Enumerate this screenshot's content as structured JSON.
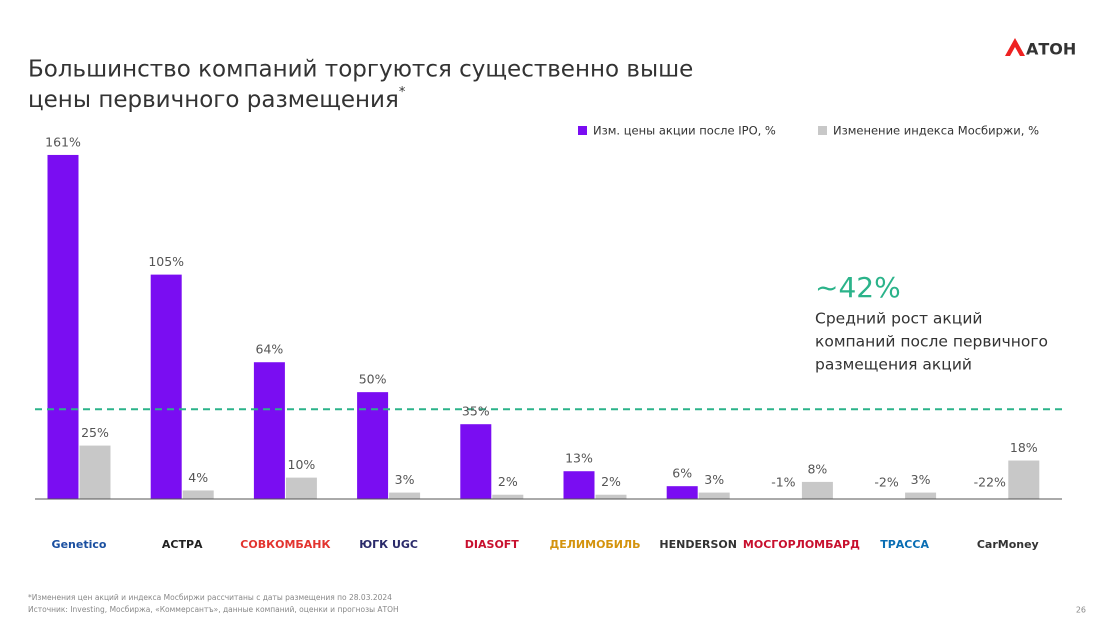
{
  "header": {
    "title_lines": [
      "Большинство компаний торгуются существенно выше",
      "цены первичного размещения"
    ],
    "title_note_mark": "*",
    "brand": "АТОН"
  },
  "chart_data": {
    "type": "bar",
    "categories": [
      "Genetico",
      "АСТРА",
      "СОВКОМБАНК",
      "ЮГК UGC",
      "DIASOFT",
      "ДЕЛИМОБИЛЬ",
      "HENDERSON",
      "МОСГОРЛОМБАРД",
      "ТРАССА",
      "CarMoney"
    ],
    "series": [
      {
        "name": "Изм. цены акции после IPO, %",
        "color": "#7a0df2",
        "values": [
          161,
          105,
          64,
          50,
          35,
          13,
          6,
          -1,
          -2,
          -22
        ],
        "value_labels": [
          "161%",
          "105%",
          "64%",
          "50%",
          "35%",
          "13%",
          "6%",
          "-1%",
          "-2%",
          "-22%"
        ]
      },
      {
        "name": "Изменение индекса Мосбиржи, %",
        "color": "#c8c8c8",
        "values": [
          25,
          4,
          10,
          3,
          2,
          2,
          3,
          8,
          3,
          18
        ],
        "value_labels": [
          "25%",
          "4%",
          "10%",
          "3%",
          "2%",
          "2%",
          "3%",
          "8%",
          "3%",
          "18%"
        ]
      }
    ],
    "legend": "top-right",
    "reference_line": {
      "value": 42,
      "label": "~42%",
      "color": "#2bb38a",
      "description_lines": [
        "Средний рост акций",
        "компаний после первичного",
        "размещения акций"
      ]
    }
  },
  "footer": {
    "note": "*Изменения цен акций и индекса Мосбиржи рассчитаны с даты размещения по 28.03.2024",
    "source": "Источник: Investing, Мосбиржа, «Коммерсантъ», данные компаний, оценки и прогнозы АТОН",
    "page": "26"
  }
}
